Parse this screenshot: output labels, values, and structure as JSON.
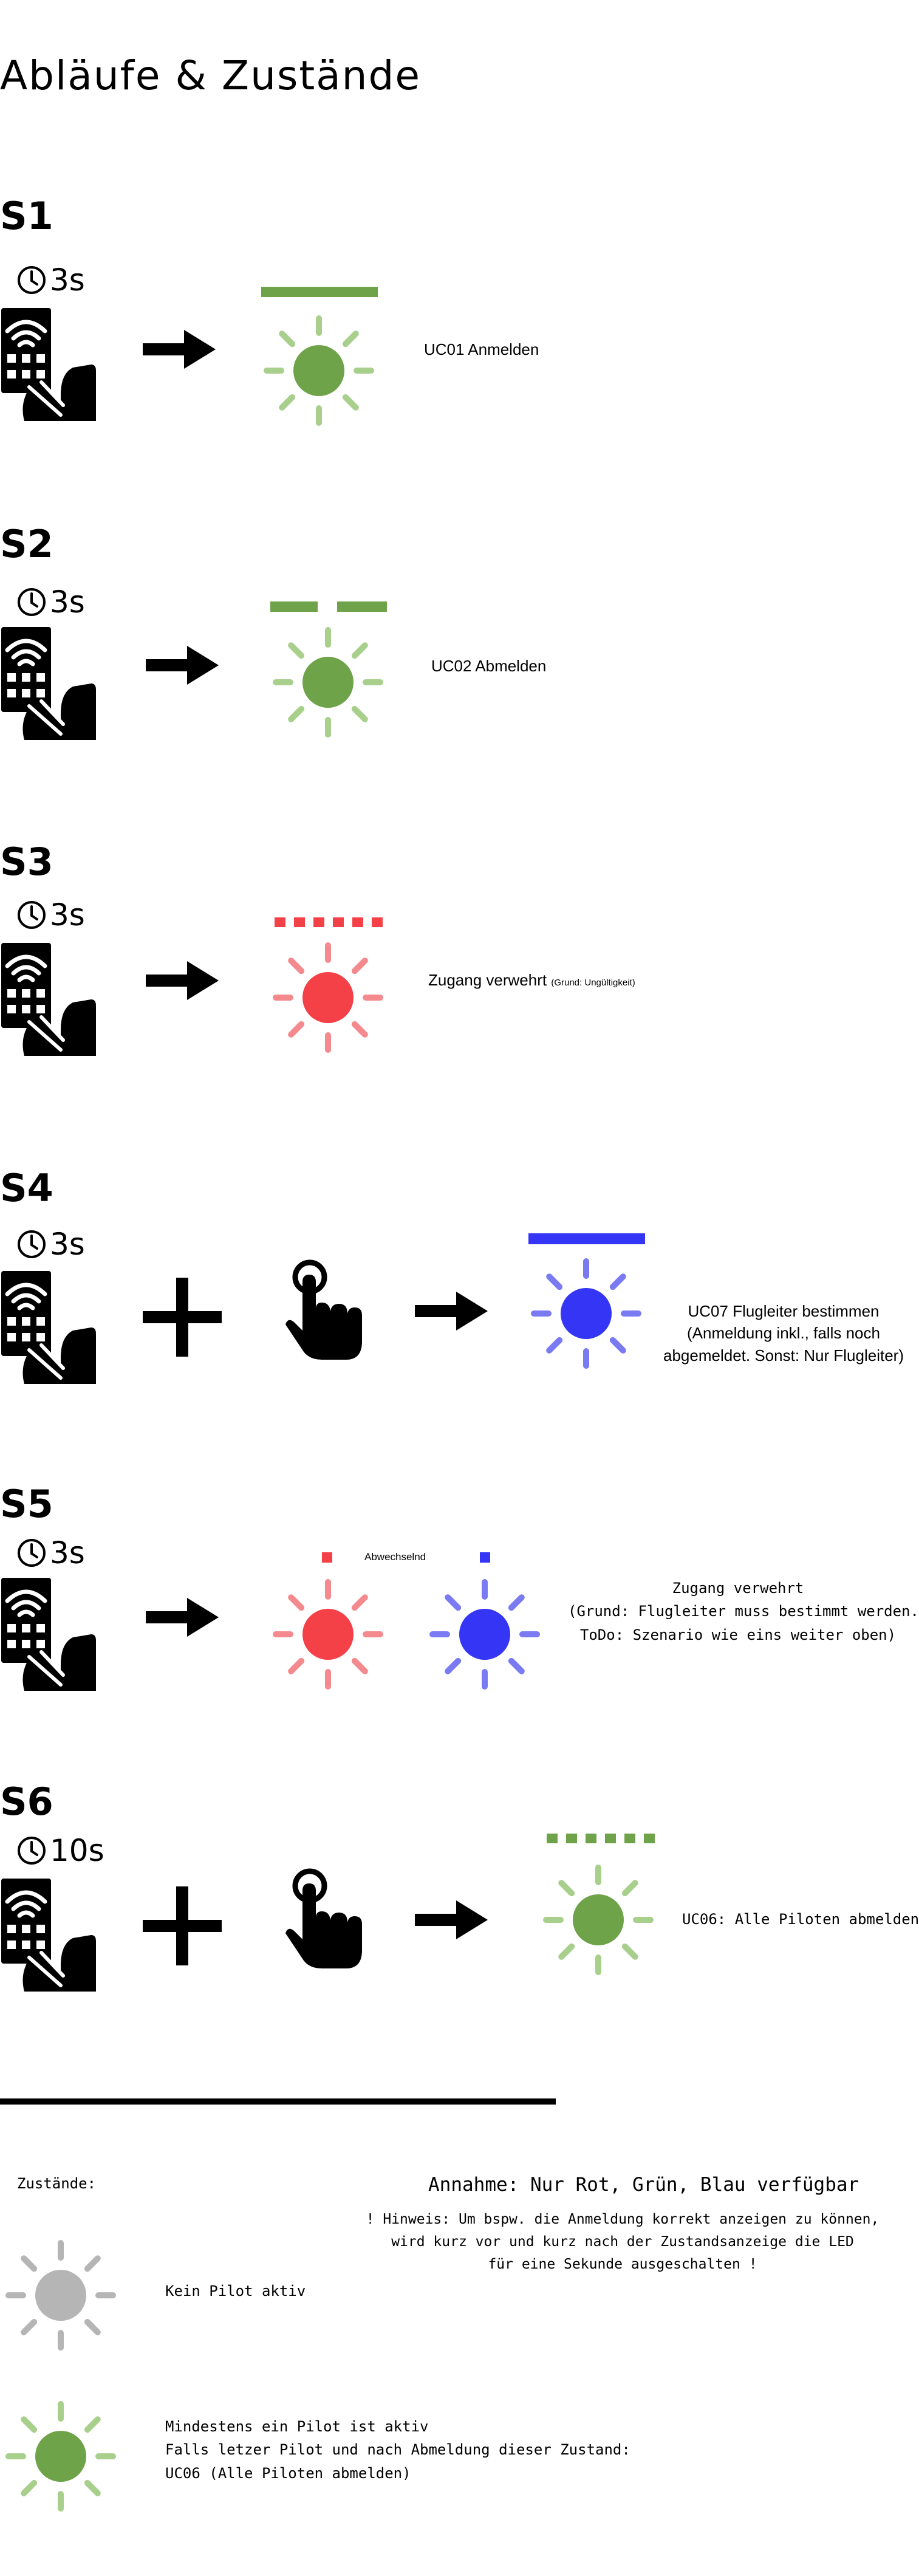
{
  "page": {
    "title": "Abläufe & Zustände"
  },
  "colors": {
    "green": "#6ea34a",
    "green_light": "#a8cf8c",
    "red": "#f44148",
    "red_light": "#f58a8e",
    "blue": "#3535f5",
    "blue_light": "#7a7af2",
    "gray": "#b5b5b5",
    "black": "#000000"
  },
  "icons": {
    "remote": "remote-control-in-hand-icon",
    "clock": "clock-icon",
    "arrow": "arrow-right-icon",
    "plus": "plus-icon",
    "tap": "finger-tap-icon",
    "led": "led-light-icon"
  },
  "scenarios": [
    {
      "id": "S1",
      "duration": "3s",
      "label": "UC01 Anmelden",
      "indicator": "solid bar, green"
    },
    {
      "id": "S2",
      "duration": "3s",
      "label": "UC02 Abmelden",
      "indicator": "two bars, green"
    },
    {
      "id": "S3",
      "duration": "3s",
      "label": "Zugang verwehrt",
      "note": "(Grund: Ungültigkeit)",
      "indicator": "dashed bar, red"
    },
    {
      "id": "S4",
      "duration": "3s",
      "label_lines": [
        "UC07 Flugleiter bestimmen",
        "(Anmeldung inkl., falls noch",
        "abgemeldet. Sonst: Nur Flugleiter)"
      ],
      "indicator": "solid bar, blue"
    },
    {
      "id": "S5",
      "duration": "3s",
      "alternating": "Abwechselnd",
      "label_lines": [
        "Zugang verwehrt",
        "(Grund: Flugleiter muss bestimmt werden.",
        "ToDo: Szenario wie eins weiter oben)"
      ],
      "indicator": "red / blue alternating"
    },
    {
      "id": "S6",
      "duration": "10s",
      "label": "UC06: Alle Piloten abmelden",
      "indicator": "dashed bar, green"
    }
  ],
  "states": {
    "heading": "Zustände:",
    "assumption": "Annahme: Nur Rot, Grün, Blau verfügbar",
    "hint_lines": [
      "! Hinweis: Um bspw. die Anmeldung korrekt anzeigen zu können,",
      "wird kurz vor und kurz nach der Zustandsanzeige die LED",
      "für eine Sekunde ausgeschalten !"
    ],
    "none_active": "Kein Pilot aktiv",
    "active_lines": [
      "Mindestens ein Pilot ist aktiv",
      "Falls letzer Pilot und nach Abmeldung dieser Zustand:",
      "UC06 (Alle Piloten abmelden)"
    ]
  }
}
